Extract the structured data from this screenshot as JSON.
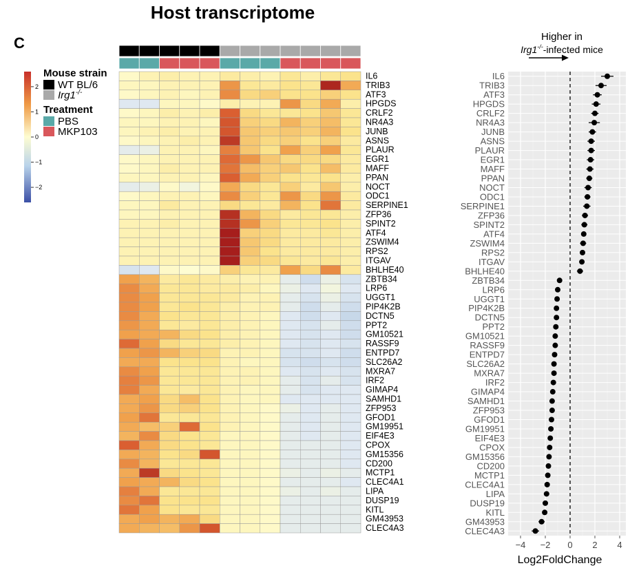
{
  "chart_data": [
    {
      "type": "heatmap",
      "title": "Host transcriptome",
      "panel_label": "C",
      "genes": [
        "IL6",
        "TRIB3",
        "ATF3",
        "HPGDS",
        "CRLF2",
        "NR4A3",
        "JUNB",
        "ASNS",
        "PLAUR",
        "EGR1",
        "MAFF",
        "PPAN",
        "NOCT",
        "ODC1",
        "SERPINE1",
        "ZFP36",
        "SPINT2",
        "ATF4",
        "ZSWIM4",
        "RPS2",
        "ITGAV",
        "BHLHE40",
        "ZBTB34",
        "LRP6",
        "UGGT1",
        "PIP4K2B",
        "DCTN5",
        "PPT2",
        "GM10521",
        "RASSF9",
        "ENTPD7",
        "SLC26A2",
        "MXRA7",
        "IRF2",
        "GIMAP4",
        "SAMHD1",
        "ZFP953",
        "GFOD1",
        "GM19951",
        "EIF4E3",
        "CPOX",
        "GM15356",
        "CD200",
        "MCTP1",
        "CLEC4A1",
        "LIPA",
        "DUSP19",
        "KITL",
        "GM43953",
        "CLEC4A3"
      ],
      "columns": [
        {
          "strain": "WT BL/6",
          "treatment": "PBS"
        },
        {
          "strain": "WT BL/6",
          "treatment": "PBS"
        },
        {
          "strain": "WT BL/6",
          "treatment": "MKP103"
        },
        {
          "strain": "WT BL/6",
          "treatment": "MKP103"
        },
        {
          "strain": "WT BL/6",
          "treatment": "MKP103"
        },
        {
          "strain": "Irg1-/-",
          "treatment": "PBS"
        },
        {
          "strain": "Irg1-/-",
          "treatment": "PBS"
        },
        {
          "strain": "Irg1-/-",
          "treatment": "PBS"
        },
        {
          "strain": "Irg1-/-",
          "treatment": "MKP103"
        },
        {
          "strain": "Irg1-/-",
          "treatment": "MKP103"
        },
        {
          "strain": "Irg1-/-",
          "treatment": "MKP103"
        },
        {
          "strain": "Irg1-/-",
          "treatment": "MKP103"
        }
      ],
      "values": [
        [
          0.1,
          0.3,
          0.4,
          0.3,
          0.3,
          0.5,
          0.4,
          0.3,
          0.6,
          0.4,
          0.6,
          0.7
        ],
        [
          0.2,
          0.2,
          0.3,
          0.3,
          0.3,
          1.5,
          0.6,
          0.5,
          0.7,
          0.6,
          2.6,
          1.3
        ],
        [
          0.1,
          0.2,
          0.3,
          0.2,
          0.3,
          1.6,
          0.8,
          0.9,
          0.7,
          0.7,
          0.9,
          0.7
        ],
        [
          -0.5,
          -0.5,
          0.2,
          0.2,
          0.1,
          0.4,
          0.3,
          0.3,
          1.5,
          0.8,
          1.3,
          0.4
        ],
        [
          0.1,
          0.2,
          0.4,
          0.3,
          0.4,
          2.0,
          0.8,
          0.6,
          0.6,
          0.7,
          1.0,
          0.6
        ],
        [
          0.2,
          0.2,
          0.3,
          0.3,
          0.2,
          2.1,
          0.9,
          0.8,
          1.2,
          0.9,
          1.1,
          0.6
        ],
        [
          0.2,
          0.3,
          0.4,
          0.3,
          0.3,
          2.1,
          1.0,
          0.9,
          1.0,
          0.9,
          1.2,
          0.7
        ],
        [
          0.1,
          0.2,
          0.3,
          0.4,
          0.3,
          2.4,
          1.0,
          0.8,
          0.9,
          0.7,
          0.9,
          0.5
        ],
        [
          -0.4,
          -0.3,
          0.3,
          0.3,
          0.2,
          1.7,
          1.0,
          0.7,
          1.4,
          0.9,
          1.4,
          0.6
        ],
        [
          0.1,
          0.2,
          0.3,
          0.3,
          0.3,
          1.9,
          1.5,
          1.0,
          0.8,
          0.8,
          0.8,
          0.5
        ],
        [
          0.1,
          0.2,
          0.4,
          0.3,
          0.3,
          1.8,
          1.1,
          0.9,
          1.0,
          0.7,
          1.1,
          0.5
        ],
        [
          0.2,
          0.2,
          0.3,
          0.3,
          0.2,
          2.0,
          1.3,
          0.9,
          0.7,
          0.6,
          0.7,
          0.4
        ],
        [
          -0.4,
          -0.3,
          0.1,
          -0.2,
          0.1,
          1.3,
          0.8,
          0.6,
          0.9,
          0.5,
          1.0,
          0.4
        ],
        [
          0.1,
          0.2,
          0.3,
          0.3,
          0.2,
          1.6,
          0.9,
          0.6,
          1.5,
          0.8,
          1.5,
          0.5
        ],
        [
          0.2,
          0.2,
          0.5,
          0.3,
          0.3,
          0.8,
          0.6,
          0.5,
          1.2,
          0.7,
          1.8,
          0.5
        ],
        [
          0.2,
          0.2,
          0.3,
          0.3,
          0.3,
          2.5,
          1.2,
          0.8,
          0.5,
          0.6,
          0.6,
          0.4
        ],
        [
          0.3,
          0.3,
          0.4,
          0.3,
          0.3,
          2.5,
          1.5,
          0.9,
          0.6,
          0.6,
          0.7,
          0.4
        ],
        [
          0.3,
          0.3,
          0.3,
          0.3,
          0.3,
          2.7,
          0.9,
          0.8,
          0.5,
          0.5,
          0.6,
          0.4
        ],
        [
          0.3,
          0.3,
          0.3,
          0.3,
          0.3,
          2.7,
          1.0,
          0.8,
          0.5,
          0.5,
          0.5,
          0.4
        ],
        [
          0.3,
          0.3,
          0.3,
          0.3,
          0.3,
          2.8,
          1.0,
          0.7,
          0.5,
          0.5,
          0.5,
          0.4
        ],
        [
          0.3,
          0.3,
          0.3,
          0.3,
          0.3,
          2.7,
          0.9,
          0.8,
          0.6,
          0.5,
          0.6,
          0.4
        ],
        [
          -0.6,
          -0.5,
          0.1,
          0.0,
          0.1,
          0.9,
          0.6,
          0.5,
          1.4,
          0.8,
          1.6,
          0.5
        ],
        [
          1.4,
          1.2,
          0.5,
          0.6,
          0.5,
          0.4,
          0.3,
          0.3,
          -0.4,
          -0.7,
          -0.3,
          -0.6
        ],
        [
          1.6,
          1.3,
          0.6,
          0.6,
          0.5,
          0.5,
          0.4,
          0.2,
          -0.3,
          -0.5,
          -0.2,
          -0.5
        ],
        [
          1.6,
          1.4,
          0.6,
          0.6,
          0.6,
          0.5,
          0.3,
          0.3,
          -0.4,
          -0.6,
          -0.3,
          -0.6
        ],
        [
          1.6,
          1.4,
          0.6,
          0.7,
          0.6,
          0.4,
          0.3,
          0.3,
          -0.4,
          -0.7,
          -0.4,
          -0.7
        ],
        [
          1.6,
          1.3,
          0.7,
          0.6,
          0.6,
          0.4,
          0.3,
          0.2,
          -0.5,
          -0.7,
          -0.5,
          -0.8
        ],
        [
          1.5,
          1.3,
          0.6,
          0.5,
          0.6,
          0.4,
          0.3,
          0.2,
          -0.5,
          -0.6,
          -0.4,
          -0.7
        ],
        [
          1.4,
          1.3,
          1.2,
          0.8,
          0.7,
          0.4,
          0.3,
          0.2,
          -0.5,
          -0.6,
          -0.5,
          -0.7
        ],
        [
          1.9,
          1.4,
          0.8,
          0.6,
          0.6,
          0.4,
          0.3,
          0.2,
          -0.5,
          -0.6,
          -0.5,
          -0.6
        ],
        [
          1.4,
          1.5,
          1.2,
          0.9,
          0.8,
          0.3,
          0.3,
          0.2,
          -0.6,
          -0.6,
          -0.5,
          -0.7
        ],
        [
          1.3,
          1.3,
          0.7,
          0.7,
          0.7,
          0.3,
          0.2,
          0.2,
          -0.6,
          -0.7,
          -0.6,
          -0.7
        ],
        [
          1.6,
          1.4,
          0.6,
          0.6,
          0.6,
          0.3,
          0.3,
          0.2,
          -0.5,
          -0.6,
          -0.5,
          -0.6
        ],
        [
          1.7,
          1.5,
          0.6,
          0.6,
          0.6,
          0.3,
          0.3,
          0.2,
          -0.4,
          -0.6,
          -0.4,
          -0.6
        ],
        [
          1.7,
          1.3,
          0.6,
          0.5,
          0.6,
          0.3,
          0.2,
          0.2,
          -0.4,
          -0.6,
          -0.5,
          -0.5
        ],
        [
          1.3,
          1.4,
          0.8,
          1.1,
          0.7,
          0.3,
          0.2,
          0.2,
          -0.5,
          -0.5,
          -0.5,
          -0.5
        ],
        [
          1.3,
          1.5,
          0.8,
          0.9,
          0.7,
          0.3,
          0.2,
          0.1,
          -0.3,
          -0.5,
          -0.4,
          -0.5
        ],
        [
          1.4,
          1.8,
          0.6,
          0.6,
          0.6,
          0.3,
          0.2,
          0.1,
          -0.4,
          -0.5,
          -0.4,
          -0.5
        ],
        [
          1.3,
          1.1,
          0.9,
          1.9,
          0.7,
          0.3,
          0.2,
          0.1,
          -0.4,
          -0.5,
          -0.4,
          -0.5
        ],
        [
          1.2,
          1.6,
          0.8,
          0.7,
          0.6,
          0.2,
          0.2,
          0.1,
          -0.4,
          -0.5,
          -0.4,
          -0.5
        ],
        [
          2.0,
          1.3,
          0.8,
          0.7,
          0.6,
          0.2,
          0.2,
          0.1,
          -0.4,
          -0.4,
          -0.4,
          -0.5
        ],
        [
          1.3,
          1.2,
          0.7,
          0.8,
          2.1,
          0.2,
          0.2,
          0.1,
          -0.4,
          -0.4,
          -0.4,
          -0.5
        ],
        [
          1.6,
          1.2,
          0.6,
          0.6,
          0.6,
          0.2,
          0.2,
          0.1,
          -0.4,
          -0.4,
          -0.4,
          -0.5
        ],
        [
          1.3,
          2.4,
          0.8,
          0.7,
          0.6,
          0.2,
          0.2,
          0.1,
          -0.3,
          -0.4,
          -0.3,
          -0.4
        ],
        [
          1.4,
          1.3,
          1.2,
          0.8,
          0.7,
          0.2,
          0.2,
          0.1,
          -0.4,
          -0.4,
          -0.4,
          -0.5
        ],
        [
          1.7,
          1.3,
          0.6,
          0.6,
          0.6,
          0.2,
          0.2,
          0.1,
          -0.3,
          -0.4,
          -0.3,
          -0.4
        ],
        [
          1.6,
          1.8,
          0.7,
          0.7,
          0.7,
          0.2,
          0.2,
          0.1,
          -0.4,
          -0.4,
          -0.4,
          -0.4
        ],
        [
          1.8,
          1.4,
          0.7,
          0.6,
          0.6,
          0.2,
          0.2,
          0.1,
          -0.4,
          -0.4,
          -0.4,
          -0.4
        ],
        [
          1.3,
          1.4,
          1.2,
          1.3,
          0.8,
          0.2,
          0.2,
          0.1,
          -0.4,
          -0.4,
          -0.4,
          -0.4
        ],
        [
          1.3,
          1.2,
          1.1,
          1.5,
          2.1,
          0.2,
          0.2,
          0.1,
          -0.4,
          -0.4,
          -0.4,
          -0.4
        ]
      ],
      "colorbar_ticks": [
        2,
        1,
        0,
        -1,
        -2
      ],
      "colorbar_range": [
        -2.6,
        2.6
      ],
      "legend": {
        "strain_title": "Mouse strain",
        "strain_items": [
          {
            "label": "WT BL/6",
            "color": "#000000"
          },
          {
            "label": "Irg1-/-",
            "color": "#a9a9a9"
          }
        ],
        "treatment_title": "Treatment",
        "treatment_items": [
          {
            "label": "PBS",
            "color": "#5aa9a8"
          },
          {
            "label": "MKP103",
            "color": "#d9575b"
          }
        ]
      }
    },
    {
      "type": "scatter",
      "subtype": "dot-with-error-bars",
      "annotation_line1": "Higher in",
      "annotation_gene": "Irg1",
      "annotation_sup": "-/-",
      "annotation_rest": "-infected mice",
      "xlabel": "Log2FoldChange",
      "xlim": [
        -5,
        4.5
      ],
      "xticks": [
        -4,
        -2,
        0,
        2,
        4
      ],
      "xtick_labels": [
        "−4",
        "−2",
        "0",
        "2",
        "4"
      ],
      "reference_line": 0,
      "points": [
        {
          "gene": "IL6",
          "value": 3.0,
          "err": 0.5
        },
        {
          "gene": "TRIB3",
          "value": 2.5,
          "err": 0.45
        },
        {
          "gene": "ATF3",
          "value": 2.2,
          "err": 0.35
        },
        {
          "gene": "HPGDS",
          "value": 2.1,
          "err": 0.35
        },
        {
          "gene": "CRLF2",
          "value": 2.0,
          "err": 0.3
        },
        {
          "gene": "NR4A3",
          "value": 1.95,
          "err": 0.45
        },
        {
          "gene": "JUNB",
          "value": 1.8,
          "err": 0.3
        },
        {
          "gene": "ASNS",
          "value": 1.7,
          "err": 0.3
        },
        {
          "gene": "PLAUR",
          "value": 1.7,
          "err": 0.3
        },
        {
          "gene": "EGR1",
          "value": 1.65,
          "err": 0.3
        },
        {
          "gene": "MAFF",
          "value": 1.6,
          "err": 0.3
        },
        {
          "gene": "PPAN",
          "value": 1.55,
          "err": 0.25
        },
        {
          "gene": "NOCT",
          "value": 1.45,
          "err": 0.3
        },
        {
          "gene": "ODC1",
          "value": 1.4,
          "err": 0.25
        },
        {
          "gene": "SERPINE1",
          "value": 1.35,
          "err": 0.3
        },
        {
          "gene": "ZFP36",
          "value": 1.2,
          "err": 0.25
        },
        {
          "gene": "SPINT2",
          "value": 1.15,
          "err": 0.25
        },
        {
          "gene": "ATF4",
          "value": 1.1,
          "err": 0.2
        },
        {
          "gene": "ZSWIM4",
          "value": 1.05,
          "err": 0.25
        },
        {
          "gene": "RPS2",
          "value": 1.0,
          "err": 0.2
        },
        {
          "gene": "ITGAV",
          "value": 0.95,
          "err": 0.2
        },
        {
          "gene": "BHLHE40",
          "value": 0.8,
          "err": 0.25
        },
        {
          "gene": "ZBTB34",
          "value": -0.85,
          "err": 0.15
        },
        {
          "gene": "LRP6",
          "value": -1.0,
          "err": 0.15
        },
        {
          "gene": "UGGT1",
          "value": -1.05,
          "err": 0.15
        },
        {
          "gene": "PIP4K2B",
          "value": -1.1,
          "err": 0.15
        },
        {
          "gene": "DCTN5",
          "value": -1.1,
          "err": 0.15
        },
        {
          "gene": "PPT2",
          "value": -1.15,
          "err": 0.15
        },
        {
          "gene": "GM10521",
          "value": -1.2,
          "err": 0.15
        },
        {
          "gene": "RASSF9",
          "value": -1.2,
          "err": 0.15
        },
        {
          "gene": "ENTPD7",
          "value": -1.25,
          "err": 0.15
        },
        {
          "gene": "SLC26A2",
          "value": -1.3,
          "err": 0.15
        },
        {
          "gene": "MXRA7",
          "value": -1.3,
          "err": 0.15
        },
        {
          "gene": "IRF2",
          "value": -1.35,
          "err": 0.15
        },
        {
          "gene": "GIMAP4",
          "value": -1.4,
          "err": 0.15
        },
        {
          "gene": "SAMHD1",
          "value": -1.45,
          "err": 0.15
        },
        {
          "gene": "ZFP953",
          "value": -1.45,
          "err": 0.15
        },
        {
          "gene": "GFOD1",
          "value": -1.5,
          "err": 0.15
        },
        {
          "gene": "GM19951",
          "value": -1.55,
          "err": 0.15
        },
        {
          "gene": "EIF4E3",
          "value": -1.6,
          "err": 0.15
        },
        {
          "gene": "CPOX",
          "value": -1.65,
          "err": 0.15
        },
        {
          "gene": "GM15356",
          "value": -1.7,
          "err": 0.15
        },
        {
          "gene": "CD200",
          "value": -1.75,
          "err": 0.15
        },
        {
          "gene": "MCTP1",
          "value": -1.8,
          "err": 0.15
        },
        {
          "gene": "CLEC4A1",
          "value": -1.85,
          "err": 0.2
        },
        {
          "gene": "LIPA",
          "value": -1.9,
          "err": 0.2
        },
        {
          "gene": "DUSP19",
          "value": -2.0,
          "err": 0.2
        },
        {
          "gene": "KITL",
          "value": -2.05,
          "err": 0.2
        },
        {
          "gene": "GM43953",
          "value": -2.3,
          "err": 0.25
        },
        {
          "gene": "CLEC4A3",
          "value": -2.8,
          "err": 0.3
        }
      ]
    }
  ]
}
